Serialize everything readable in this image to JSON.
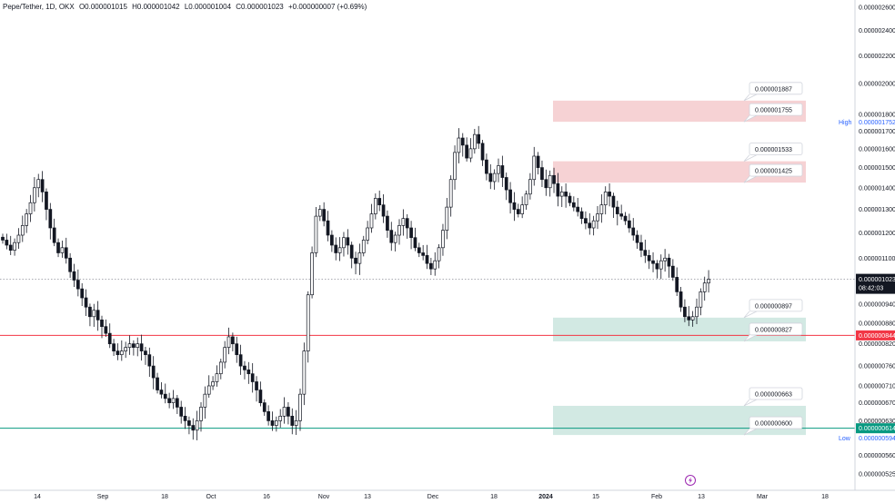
{
  "header": {
    "symbol": "Pepe/Tether, 1D, OKX",
    "open": "O0.000001015",
    "high": "H0.000001042",
    "low": "L0.000001004",
    "close": "C0.000001023",
    "change": "+0.000000007 (+0.69%)"
  },
  "colors": {
    "up": "#ffffff",
    "down": "#131722",
    "wick": "#131722",
    "supply_zone": "#f4c7c9",
    "demand_zone": "#c7e4dc",
    "red_line": "#f23645",
    "green_line": "#089981",
    "price_tag": "#131722"
  },
  "chart_data": {
    "type": "candlestick",
    "title": "Pepe/Tether, 1D, OKX",
    "x_tick_labels": [
      "14",
      "Sep",
      "18",
      "Oct",
      "16",
      "Nov",
      "13",
      "Dec",
      "18",
      "2024",
      "15",
      "Feb",
      "13",
      "Mar",
      "18"
    ],
    "y_tick_labels": [
      "0.000002600",
      "0.000002400",
      "0.000002200",
      "0.000002000",
      "0.000001800",
      "0.000001700",
      "0.000001600",
      "0.000001500",
      "0.000001400",
      "0.000001300",
      "0.000001200",
      "0.000001100",
      "0.000000940",
      "0.000000880",
      "0.000000820",
      "0.000000760",
      "0.000000710",
      "0.000000670",
      "0.000000630",
      "0.000000560",
      "0.000000525"
    ],
    "y_scale": "log",
    "ylim": [
      5e-07,
      2.6e-06
    ],
    "last_price": "0.000001023",
    "countdown": "08:42:03",
    "high": {
      "label": "High",
      "value": "0.000001752"
    },
    "low": {
      "label": "Low",
      "value": "0.000000594"
    },
    "horizontal_lines": [
      {
        "value": 8.44e-07,
        "label": "0.000000844",
        "color": "red"
      },
      {
        "value": 6.14e-07,
        "label": "0.000000614",
        "color": "green"
      }
    ],
    "zones": [
      {
        "kind": "supply",
        "top": 1.887e-06,
        "bottom": 1.755e-06,
        "top_label": "0.000001887",
        "bottom_label": "0.000001755"
      },
      {
        "kind": "supply",
        "top": 1.533e-06,
        "bottom": 1.425e-06,
        "top_label": "0.000001533",
        "bottom_label": "0.000001425"
      },
      {
        "kind": "demand",
        "top": 8.97e-07,
        "bottom": 8.27e-07,
        "top_label": "0.000000897",
        "bottom_label": "0.000000827"
      },
      {
        "kind": "demand",
        "top": 6.63e-07,
        "bottom": 6e-07,
        "top_label": "0.000000663",
        "bottom_label": "0.000000600"
      }
    ],
    "grid": false,
    "close": [
      1.17,
      1.15,
      1.13,
      1.16,
      1.19,
      1.23,
      1.28,
      1.33,
      1.4,
      1.44,
      1.38,
      1.3,
      1.22,
      1.16,
      1.12,
      1.14,
      1.1,
      1.05,
      1.02,
      0.99,
      0.96,
      0.93,
      0.9,
      0.92,
      0.89,
      0.87,
      0.85,
      0.82,
      0.8,
      0.79,
      0.8,
      0.81,
      0.82,
      0.81,
      0.82,
      0.8,
      0.79,
      0.76,
      0.73,
      0.7,
      0.69,
      0.68,
      0.67,
      0.68,
      0.66,
      0.64,
      0.63,
      0.62,
      0.61,
      0.63,
      0.66,
      0.69,
      0.71,
      0.72,
      0.74,
      0.77,
      0.81,
      0.84,
      0.82,
      0.79,
      0.76,
      0.75,
      0.74,
      0.72,
      0.7,
      0.67,
      0.65,
      0.63,
      0.62,
      0.63,
      0.64,
      0.66,
      0.64,
      0.62,
      0.63,
      0.69,
      0.8,
      0.97,
      1.12,
      1.27,
      1.3,
      1.25,
      1.19,
      1.15,
      1.12,
      1.14,
      1.18,
      1.15,
      1.1,
      1.08,
      1.12,
      1.17,
      1.22,
      1.28,
      1.35,
      1.32,
      1.27,
      1.21,
      1.16,
      1.19,
      1.23,
      1.26,
      1.22,
      1.18,
      1.14,
      1.12,
      1.11,
      1.08,
      1.06,
      1.09,
      1.14,
      1.21,
      1.31,
      1.44,
      1.58,
      1.66,
      1.62,
      1.55,
      1.6,
      1.68,
      1.63,
      1.54,
      1.47,
      1.43,
      1.47,
      1.51,
      1.45,
      1.39,
      1.33,
      1.3,
      1.28,
      1.32,
      1.37,
      1.44,
      1.56,
      1.5,
      1.44,
      1.4,
      1.46,
      1.42,
      1.36,
      1.38,
      1.36,
      1.33,
      1.31,
      1.29,
      1.26,
      1.24,
      1.22,
      1.25,
      1.28,
      1.32,
      1.38,
      1.36,
      1.31,
      1.28,
      1.27,
      1.25,
      1.22,
      1.19,
      1.16,
      1.13,
      1.11,
      1.09,
      1.08,
      1.06,
      1.09,
      1.1,
      1.07,
      1.03,
      0.98,
      0.93,
      0.9,
      0.89,
      0.9,
      0.93,
      0.98,
      1.01,
      1.023
    ]
  }
}
